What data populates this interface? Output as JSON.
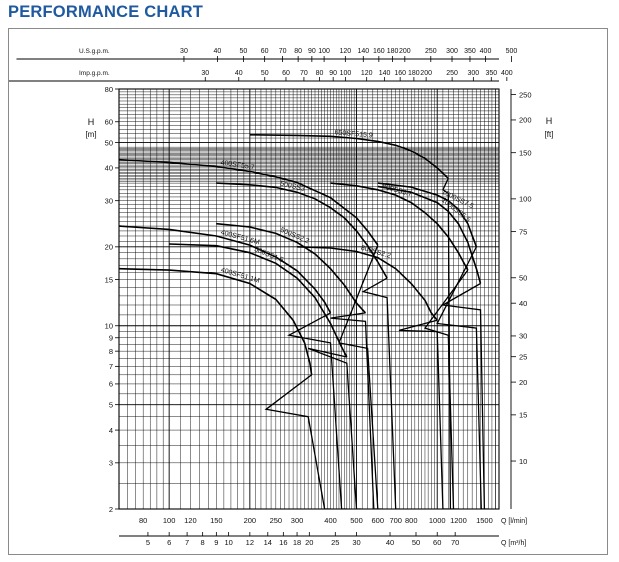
{
  "header": {
    "title": "PERFORMANCE CHART"
  },
  "chart_data": {
    "type": "line",
    "grid": true,
    "x_scale": "log",
    "y_scale": "log",
    "xlim": [
      65,
      1700
    ],
    "ylim": [
      2,
      80
    ],
    "left_axis": {
      "label": "H",
      "unit": "[m]",
      "ticks": [
        2,
        3,
        4,
        5,
        6,
        7,
        8,
        9,
        10,
        15,
        20,
        30,
        40,
        50,
        60,
        80
      ]
    },
    "right_axis": {
      "label": "H",
      "unit": "[ft]",
      "ticks": [
        10,
        15,
        20,
        25,
        30,
        40,
        50,
        75,
        100,
        150,
        200,
        250
      ]
    },
    "top_axis_usgpm": {
      "label": "U.S.g.p.m.",
      "ticks": [
        30,
        40,
        50,
        60,
        70,
        80,
        90,
        100,
        120,
        140,
        160,
        180,
        200,
        250,
        300,
        350,
        400,
        500
      ]
    },
    "top_axis_impgpm": {
      "label": "Imp.g.p.m.",
      "ticks": [
        30,
        40,
        50,
        60,
        70,
        80,
        90,
        100,
        120,
        140,
        160,
        180,
        200,
        250,
        300,
        350,
        400
      ]
    },
    "bottom_axis_lmin": {
      "label": "Q [l/min]",
      "ticks": [
        80,
        100,
        120,
        150,
        200,
        250,
        300,
        400,
        500,
        600,
        700,
        800,
        1000,
        1200,
        1500
      ]
    },
    "bottom_axis_m3h": {
      "label": "Q [m³/h]",
      "ticks": [
        5,
        6,
        7,
        8,
        9,
        10,
        12,
        14,
        16,
        18,
        20,
        25,
        30,
        40,
        50,
        60,
        70
      ]
    },
    "series": [
      {
        "name": "400SF51.1M",
        "points": [
          [
            65,
            16.5
          ],
          [
            100,
            16.3
          ],
          [
            150,
            15.8
          ],
          [
            200,
            14.5
          ],
          [
            250,
            12.6
          ],
          [
            290,
            10.5
          ],
          [
            320,
            8.6
          ],
          [
            335,
            7.2
          ],
          [
            340,
            6.5
          ]
        ],
        "efficiency_range": [
          [
            230,
            4.8
          ],
          [
            330,
            4.5
          ],
          [
            380,
            2
          ],
          [
            400,
            2
          ]
        ]
      },
      {
        "name": "500SS1.5",
        "points": [
          [
            100,
            20.5
          ],
          [
            150,
            20.2
          ],
          [
            200,
            19
          ],
          [
            250,
            17.3
          ],
          [
            300,
            15.2
          ],
          [
            350,
            12.8
          ],
          [
            400,
            10.2
          ],
          [
            440,
            8.3
          ],
          [
            460,
            7.6
          ]
        ],
        "efficiency_range": [
          [
            330,
            8.2
          ],
          [
            460,
            7.2
          ],
          [
            500,
            2
          ],
          [
            520,
            2
          ]
        ]
      },
      {
        "name": "400SF51.6M",
        "points": [
          [
            65,
            24
          ],
          [
            100,
            23.3
          ],
          [
            150,
            22
          ],
          [
            200,
            20.3
          ],
          [
            250,
            18.3
          ],
          [
            300,
            16.2
          ],
          [
            350,
            13.8
          ],
          [
            380,
            12.3
          ],
          [
            400,
            11.2
          ]
        ],
        "efficiency_range": [
          [
            280,
            9.2
          ],
          [
            400,
            8.6
          ],
          [
            440,
            2
          ],
          [
            460,
            2
          ]
        ]
      },
      {
        "name": "500SS2.2",
        "points": [
          [
            150,
            24.5
          ],
          [
            200,
            23.8
          ],
          [
            250,
            22.5
          ],
          [
            300,
            20.8
          ],
          [
            350,
            18.8
          ],
          [
            400,
            16.5
          ],
          [
            450,
            14.3
          ],
          [
            500,
            12.2
          ],
          [
            540,
            11.2
          ]
        ],
        "efficiency_range": [
          [
            400,
            10.7
          ],
          [
            540,
            10.4
          ],
          [
            580,
            2
          ],
          [
            600,
            2
          ]
        ]
      },
      {
        "name": "500SS3",
        "points": [
          [
            150,
            35
          ],
          [
            200,
            34.5
          ],
          [
            250,
            33.7
          ],
          [
            300,
            32.3
          ],
          [
            350,
            30.5
          ],
          [
            400,
            28.2
          ],
          [
            450,
            25.8
          ],
          [
            500,
            23
          ],
          [
            550,
            20.2
          ],
          [
            600,
            17.5
          ],
          [
            650,
            15.2
          ]
        ],
        "efficiency_range": [
          [
            530,
            13.5
          ],
          [
            650,
            12.8
          ],
          [
            700,
            2
          ],
          [
            720,
            2
          ]
        ]
      },
      {
        "name": "400SF55.7",
        "points": [
          [
            65,
            43
          ],
          [
            100,
            42
          ],
          [
            150,
            40.5
          ],
          [
            200,
            38.8
          ],
          [
            250,
            37
          ],
          [
            300,
            35.2
          ],
          [
            400,
            30.8
          ],
          [
            500,
            25.8
          ],
          [
            550,
            23
          ],
          [
            600,
            20.3
          ]
        ],
        "efficiency_range": [
          [
            430,
            8.6
          ],
          [
            550,
            8.2
          ],
          [
            600,
            2
          ],
          [
            620,
            2
          ]
        ]
      },
      {
        "name": "800SS2.2",
        "points": [
          [
            300,
            20
          ],
          [
            400,
            19.8
          ],
          [
            500,
            19.2
          ],
          [
            600,
            18.2
          ],
          [
            700,
            16.5
          ],
          [
            800,
            14.5
          ],
          [
            900,
            12.5
          ],
          [
            950,
            11.2
          ],
          [
            1000,
            10.5
          ]
        ],
        "efficiency_range": [
          [
            720,
            9.6
          ],
          [
            1000,
            9.5
          ],
          [
            1050,
            2
          ],
          [
            1100,
            2
          ]
        ]
      },
      {
        "name": "800SS3.7",
        "points": [
          [
            400,
            35
          ],
          [
            500,
            34.2
          ],
          [
            600,
            33
          ],
          [
            700,
            31.5
          ],
          [
            800,
            29.5
          ],
          [
            900,
            27
          ],
          [
            1000,
            24.5
          ],
          [
            1100,
            21.8
          ],
          [
            1200,
            19
          ],
          [
            1300,
            16.3
          ]
        ],
        "efficiency_range": [
          [
            900,
            9.8
          ],
          [
            1100,
            9.2
          ],
          [
            1150,
            2
          ],
          [
            1200,
            2
          ]
        ]
      },
      {
        "name": "1000SS7.5",
        "points": [
          [
            600,
            35
          ],
          [
            800,
            33.8
          ],
          [
            1000,
            31.5
          ],
          [
            1100,
            30
          ],
          [
            1200,
            27.8
          ],
          [
            1300,
            24.5
          ],
          [
            1400,
            20
          ]
        ],
        "efficiency_range": [
          [
            1000,
            10.2
          ],
          [
            1400,
            9.8
          ],
          [
            1460,
            2
          ],
          [
            1500,
            2
          ]
        ]
      },
      {
        "name": "1000SS5.5",
        "points": [
          [
            600,
            34
          ],
          [
            800,
            32.3
          ],
          [
            1000,
            29.5
          ],
          [
            1100,
            27.3
          ],
          [
            1200,
            24.5
          ],
          [
            1300,
            20.8
          ],
          [
            1400,
            16.5
          ],
          [
            1450,
            14.5
          ]
        ],
        "efficiency_range": [
          [
            1050,
            12
          ],
          [
            1450,
            11.5
          ],
          [
            1500,
            2
          ],
          [
            1550,
            2
          ]
        ]
      },
      {
        "name": "650SF515.9",
        "points": [
          [
            200,
            53.5
          ],
          [
            300,
            53.2
          ],
          [
            400,
            52.8
          ],
          [
            500,
            51.8
          ],
          [
            600,
            50.5
          ],
          [
            700,
            48.8
          ],
          [
            800,
            46.5
          ],
          [
            900,
            43.5
          ],
          [
            1000,
            40
          ],
          [
            1100,
            36.5
          ]
        ],
        "efficiency_range": [
          [
            1050,
            33
          ],
          [
            1100,
            32
          ],
          [
            1120,
            2
          ],
          [
            1150,
            2
          ]
        ]
      }
    ]
  }
}
